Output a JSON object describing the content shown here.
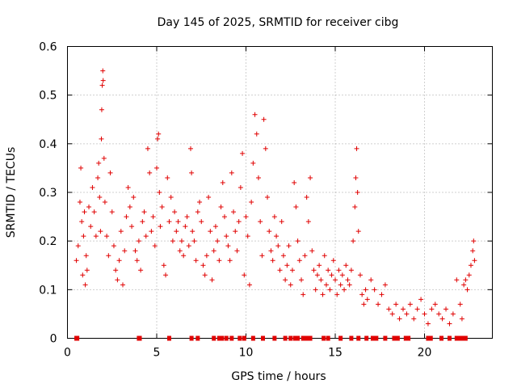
{
  "chart_data": {
    "type": "scatter",
    "title": "Day 145 of 2025, SRMTID for receiver cibg",
    "xlabel": "GPS time / hours",
    "ylabel": "SRMTID / TECUs",
    "xlim": [
      0,
      23.8
    ],
    "ylim": [
      0,
      0.6
    ],
    "x_ticks": [
      0,
      5,
      10,
      15,
      20
    ],
    "x_tick_labels": [
      "0",
      "5",
      "10",
      "15",
      "20"
    ],
    "y_ticks": [
      0,
      0.1,
      0.2,
      0.3,
      0.4,
      0.5,
      0.6
    ],
    "y_tick_labels": [
      "0",
      "0.1",
      "0.2",
      "0.3",
      "0.4",
      "0.5",
      "0.6"
    ],
    "grid": true,
    "marker": "plus",
    "series_color": "#e00000",
    "series": [
      {
        "name": "SRMTID",
        "points": [
          [
            0.5,
            0.16
          ],
          [
            0.6,
            0.19
          ],
          [
            0.7,
            0.28
          ],
          [
            0.75,
            0.35
          ],
          [
            0.8,
            0.24
          ],
          [
            0.85,
            0.13
          ],
          [
            0.9,
            0.21
          ],
          [
            0.95,
            0.26
          ],
          [
            1.0,
            0.11
          ],
          [
            1.05,
            0.17
          ],
          [
            1.1,
            0.14
          ],
          [
            1.2,
            0.27
          ],
          [
            1.3,
            0.23
          ],
          [
            1.4,
            0.31
          ],
          [
            1.5,
            0.26
          ],
          [
            1.6,
            0.21
          ],
          [
            1.7,
            0.33
          ],
          [
            1.75,
            0.36
          ],
          [
            1.8,
            0.29
          ],
          [
            1.85,
            0.22
          ],
          [
            1.9,
            0.41
          ],
          [
            1.92,
            0.47
          ],
          [
            1.95,
            0.52
          ],
          [
            1.98,
            0.55
          ],
          [
            2.0,
            0.53
          ],
          [
            2.05,
            0.37
          ],
          [
            2.1,
            0.28
          ],
          [
            2.2,
            0.21
          ],
          [
            2.3,
            0.17
          ],
          [
            2.4,
            0.34
          ],
          [
            2.5,
            0.26
          ],
          [
            2.6,
            0.19
          ],
          [
            2.7,
            0.14
          ],
          [
            2.8,
            0.12
          ],
          [
            2.9,
            0.16
          ],
          [
            3.0,
            0.22
          ],
          [
            3.1,
            0.11
          ],
          [
            3.2,
            0.18
          ],
          [
            3.3,
            0.25
          ],
          [
            3.4,
            0.31
          ],
          [
            3.5,
            0.27
          ],
          [
            3.6,
            0.23
          ],
          [
            3.7,
            0.29
          ],
          [
            3.8,
            0.18
          ],
          [
            3.9,
            0.16
          ],
          [
            4.0,
            0.2
          ],
          [
            4.1,
            0.14
          ],
          [
            4.2,
            0.24
          ],
          [
            4.3,
            0.26
          ],
          [
            4.4,
            0.21
          ],
          [
            4.5,
            0.39
          ],
          [
            4.6,
            0.34
          ],
          [
            4.7,
            0.22
          ],
          [
            4.8,
            0.25
          ],
          [
            4.9,
            0.19
          ],
          [
            5.0,
            0.35
          ],
          [
            5.05,
            0.41
          ],
          [
            5.1,
            0.42
          ],
          [
            5.15,
            0.3
          ],
          [
            5.2,
            0.23
          ],
          [
            5.3,
            0.27
          ],
          [
            5.4,
            0.15
          ],
          [
            5.5,
            0.13
          ],
          [
            5.6,
            0.33
          ],
          [
            5.7,
            0.24
          ],
          [
            5.8,
            0.29
          ],
          [
            5.9,
            0.2
          ],
          [
            6.0,
            0.26
          ],
          [
            6.1,
            0.22
          ],
          [
            6.2,
            0.24
          ],
          [
            6.3,
            0.18
          ],
          [
            6.4,
            0.2
          ],
          [
            6.5,
            0.17
          ],
          [
            6.6,
            0.23
          ],
          [
            6.7,
            0.25
          ],
          [
            6.8,
            0.19
          ],
          [
            6.9,
            0.39
          ],
          [
            6.95,
            0.34
          ],
          [
            7.0,
            0.22
          ],
          [
            7.1,
            0.2
          ],
          [
            7.2,
            0.16
          ],
          [
            7.3,
            0.26
          ],
          [
            7.4,
            0.28
          ],
          [
            7.5,
            0.24
          ],
          [
            7.6,
            0.15
          ],
          [
            7.7,
            0.13
          ],
          [
            7.8,
            0.17
          ],
          [
            7.9,
            0.29
          ],
          [
            8.0,
            0.22
          ],
          [
            8.1,
            0.12
          ],
          [
            8.2,
            0.18
          ],
          [
            8.3,
            0.23
          ],
          [
            8.4,
            0.2
          ],
          [
            8.5,
            0.16
          ],
          [
            8.6,
            0.27
          ],
          [
            8.7,
            0.32
          ],
          [
            8.8,
            0.25
          ],
          [
            8.9,
            0.21
          ],
          [
            9.0,
            0.19
          ],
          [
            9.1,
            0.16
          ],
          [
            9.2,
            0.34
          ],
          [
            9.3,
            0.26
          ],
          [
            9.4,
            0.22
          ],
          [
            9.5,
            0.18
          ],
          [
            9.6,
            0.24
          ],
          [
            9.7,
            0.31
          ],
          [
            9.8,
            0.38
          ],
          [
            9.9,
            0.13
          ],
          [
            10.0,
            0.25
          ],
          [
            10.1,
            0.21
          ],
          [
            10.2,
            0.11
          ],
          [
            10.3,
            0.28
          ],
          [
            10.4,
            0.36
          ],
          [
            10.5,
            0.46
          ],
          [
            10.6,
            0.42
          ],
          [
            10.7,
            0.33
          ],
          [
            10.8,
            0.24
          ],
          [
            10.9,
            0.17
          ],
          [
            11.0,
            0.45
          ],
          [
            11.1,
            0.39
          ],
          [
            11.2,
            0.29
          ],
          [
            11.3,
            0.22
          ],
          [
            11.4,
            0.18
          ],
          [
            11.5,
            0.16
          ],
          [
            11.6,
            0.25
          ],
          [
            11.7,
            0.21
          ],
          [
            11.8,
            0.19
          ],
          [
            11.9,
            0.14
          ],
          [
            12.0,
            0.24
          ],
          [
            12.1,
            0.17
          ],
          [
            12.2,
            0.12
          ],
          [
            12.3,
            0.15
          ],
          [
            12.4,
            0.19
          ],
          [
            12.5,
            0.11
          ],
          [
            12.6,
            0.14
          ],
          [
            12.7,
            0.32
          ],
          [
            12.8,
            0.27
          ],
          [
            12.9,
            0.2
          ],
          [
            13.0,
            0.16
          ],
          [
            13.1,
            0.12
          ],
          [
            13.2,
            0.09
          ],
          [
            13.3,
            0.17
          ],
          [
            13.4,
            0.29
          ],
          [
            13.5,
            0.24
          ],
          [
            13.6,
            0.33
          ],
          [
            13.7,
            0.18
          ],
          [
            13.8,
            0.14
          ],
          [
            13.9,
            0.1
          ],
          [
            14.0,
            0.13
          ],
          [
            14.1,
            0.15
          ],
          [
            14.2,
            0.12
          ],
          [
            14.3,
            0.09
          ],
          [
            14.4,
            0.17
          ],
          [
            14.5,
            0.11
          ],
          [
            14.6,
            0.14
          ],
          [
            14.7,
            0.1
          ],
          [
            14.8,
            0.13
          ],
          [
            14.9,
            0.16
          ],
          [
            15.0,
            0.12
          ],
          [
            15.1,
            0.09
          ],
          [
            15.2,
            0.14
          ],
          [
            15.3,
            0.11
          ],
          [
            15.4,
            0.13
          ],
          [
            15.5,
            0.1
          ],
          [
            15.6,
            0.15
          ],
          [
            15.7,
            0.12
          ],
          [
            15.8,
            0.11
          ],
          [
            15.9,
            0.14
          ],
          [
            16.0,
            0.2
          ],
          [
            16.1,
            0.27
          ],
          [
            16.15,
            0.33
          ],
          [
            16.2,
            0.39
          ],
          [
            16.25,
            0.3
          ],
          [
            16.3,
            0.22
          ],
          [
            16.4,
            0.13
          ],
          [
            16.5,
            0.09
          ],
          [
            16.6,
            0.07
          ],
          [
            16.7,
            0.1
          ],
          [
            16.8,
            0.08
          ],
          [
            17.0,
            0.12
          ],
          [
            17.2,
            0.1
          ],
          [
            17.4,
            0.07
          ],
          [
            17.6,
            0.09
          ],
          [
            17.8,
            0.11
          ],
          [
            18.0,
            0.06
          ],
          [
            18.2,
            0.05
          ],
          [
            18.4,
            0.07
          ],
          [
            18.6,
            0.04
          ],
          [
            18.8,
            0.06
          ],
          [
            19.0,
            0.05
          ],
          [
            19.2,
            0.07
          ],
          [
            19.4,
            0.04
          ],
          [
            19.6,
            0.06
          ],
          [
            19.8,
            0.08
          ],
          [
            20.0,
            0.05
          ],
          [
            20.2,
            0.03
          ],
          [
            20.4,
            0.06
          ],
          [
            20.6,
            0.07
          ],
          [
            20.8,
            0.05
          ],
          [
            21.0,
            0.04
          ],
          [
            21.2,
            0.06
          ],
          [
            21.4,
            0.03
          ],
          [
            21.6,
            0.05
          ],
          [
            21.8,
            0.12
          ],
          [
            22.0,
            0.07
          ],
          [
            22.1,
            0.04
          ],
          [
            22.2,
            0.11
          ],
          [
            22.3,
            0.12
          ],
          [
            22.4,
            0.1
          ],
          [
            22.5,
            0.13
          ],
          [
            22.6,
            0.15
          ],
          [
            22.7,
            0.18
          ],
          [
            22.75,
            0.2
          ],
          [
            22.8,
            0.16
          ]
        ]
      }
    ],
    "gap_markers_y": 0,
    "gap_markers_x": [
      0.5,
      0.55,
      4.0,
      4.05,
      5.7,
      6.95,
      7.3,
      8.2,
      8.5,
      8.65,
      8.9,
      9.2,
      9.65,
      9.9,
      10.4,
      10.95,
      11.6,
      12.2,
      12.5,
      12.75,
      12.9,
      13.2,
      13.4,
      13.6,
      14.35,
      14.6,
      15.3,
      15.9,
      16.3,
      16.75,
      17.1,
      17.3,
      17.8,
      18.3,
      18.5,
      18.95,
      19.1,
      20.2,
      20.35,
      20.95,
      21.4,
      21.8,
      22.0,
      22.15,
      22.3
    ]
  }
}
